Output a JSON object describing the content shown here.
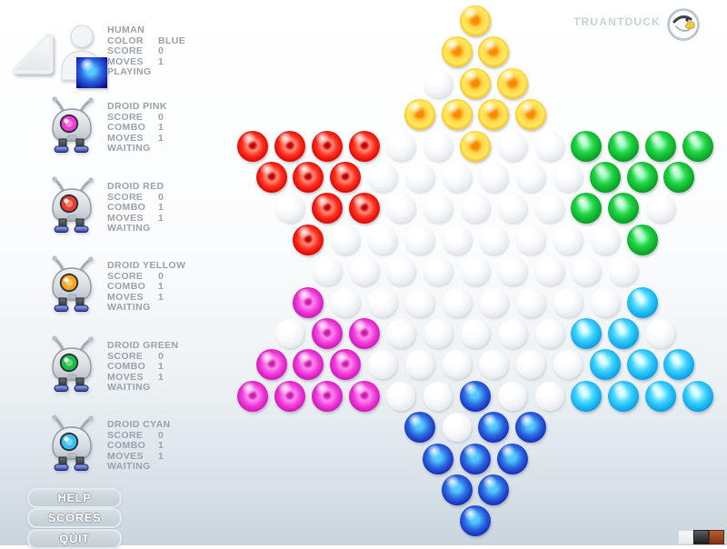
{
  "brand": {
    "name": "TRUANTDUCK",
    "logo": "duck-icon"
  },
  "players": [
    {
      "name": "HUMAN",
      "status": "PLAYING",
      "marble_color": "blue",
      "rows": [
        {
          "label": "COLOR",
          "value": "BLUE"
        },
        {
          "label": "SCORE",
          "value": "0"
        },
        {
          "label": "MOVES",
          "value": "1"
        }
      ]
    },
    {
      "name": "DROID PINK",
      "status": "WAITING",
      "marble_color": "magenta",
      "rows": [
        {
          "label": "SCORE",
          "value": "0"
        },
        {
          "label": "COMBO",
          "value": "1"
        },
        {
          "label": "MOVES",
          "value": "1"
        }
      ]
    },
    {
      "name": "DROID RED",
      "status": "WAITING",
      "marble_color": "red",
      "rows": [
        {
          "label": "SCORE",
          "value": "0"
        },
        {
          "label": "COMBO",
          "value": "1"
        },
        {
          "label": "MOVES",
          "value": "1"
        }
      ]
    },
    {
      "name": "DROID YELLOW",
      "status": "WAITING",
      "marble_color": "yellow",
      "rows": [
        {
          "label": "SCORE",
          "value": "0"
        },
        {
          "label": "COMBO",
          "value": "1"
        },
        {
          "label": "MOVES",
          "value": "1"
        }
      ]
    },
    {
      "name": "DROID GREEN",
      "status": "WAITING",
      "marble_color": "green",
      "rows": [
        {
          "label": "SCORE",
          "value": "0"
        },
        {
          "label": "COMBO",
          "value": "1"
        },
        {
          "label": "MOVES",
          "value": "1"
        }
      ]
    },
    {
      "name": "DROID CYAN",
      "status": "WAITING",
      "marble_color": "cyan",
      "rows": [
        {
          "label": "SCORE",
          "value": "0"
        },
        {
          "label": "COMBO",
          "value": "1"
        },
        {
          "label": "MOVES",
          "value": "1"
        }
      ]
    }
  ],
  "menu": [
    {
      "label": "HELP"
    },
    {
      "label": "SCORES"
    },
    {
      "label": "QUIT"
    }
  ],
  "board": {
    "legend": {
      "Y": "yellow",
      "R": "red",
      "G": "green",
      "M": "magenta",
      "C": "cyan",
      "B": "blue",
      ".": "empty"
    },
    "rows": [
      "Y",
      "YY",
      ".YY",
      "YYYY",
      "RRRR..Y..GGGG",
      "RRR......GGG",
      ".RR.....GG.",
      "R........G",
      ".........",
      "M........C",
      ".MM.....CC.",
      "MMM......CCC",
      "MMMM..B..CCCC",
      "B.BB",
      "BBB",
      "BB",
      "B"
    ]
  },
  "marble_colors": {
    "yellow": "#ffd23e",
    "red": "#e61e10",
    "green": "#12b53a",
    "magenta": "#ea24c8",
    "cyan": "#22b4ee",
    "blue": "#2138c8",
    "empty": "#eef1f4"
  },
  "theme_swatches": [
    {
      "name": "light",
      "color": "#eef1f4"
    },
    {
      "name": "dark",
      "color": "#2e2e2e"
    },
    {
      "name": "rust",
      "color": "#a4491f"
    }
  ]
}
